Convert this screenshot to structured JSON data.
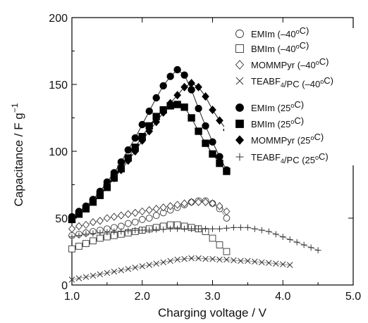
{
  "chart_data": {
    "type": "scatter",
    "title": "",
    "xlabel": "Charging voltage  / V",
    "ylabel": "Capacitance / F g",
    "ylabel_superscript": "−1",
    "xlim": [
      1.0,
      5.0
    ],
    "ylim": [
      0,
      200
    ],
    "xticks": [
      "1.0",
      "2.0",
      "3.0",
      "4.0",
      "5.0"
    ],
    "yticks": [
      "0",
      "50",
      "100",
      "150",
      "200"
    ],
    "grid": false,
    "legend_position": "top-right",
    "series": [
      {
        "name": "EMIm (–40°C)",
        "legend_parts": [
          [
            "EMIm (–40",
            false
          ],
          [
            "o",
            true
          ],
          [
            "C)",
            false
          ]
        ],
        "marker": "circle-open",
        "connect": true,
        "x": [
          1.0,
          1.1,
          1.2,
          1.3,
          1.4,
          1.5,
          1.6,
          1.7,
          1.8,
          1.9,
          2.0,
          2.1,
          2.2,
          2.3,
          2.4,
          2.5,
          2.6,
          2.7,
          2.8,
          2.9,
          3.0,
          3.1,
          3.2
        ],
        "y": [
          37,
          38,
          39,
          40,
          41,
          42,
          43,
          44,
          46,
          47,
          49,
          50,
          52,
          54,
          56,
          58,
          60,
          62,
          63,
          63,
          61,
          57,
          50
        ]
      },
      {
        "name": "BMIm (–40°C)",
        "legend_parts": [
          [
            "BMIm (–40",
            false
          ],
          [
            "o",
            true
          ],
          [
            "C)",
            false
          ]
        ],
        "marker": "square-open",
        "connect": true,
        "x": [
          1.0,
          1.1,
          1.2,
          1.3,
          1.4,
          1.5,
          1.6,
          1.7,
          1.8,
          1.9,
          2.0,
          2.1,
          2.2,
          2.3,
          2.4,
          2.5,
          2.6,
          2.7,
          2.8,
          2.9,
          3.0,
          3.1,
          3.2
        ],
        "y": [
          27,
          29,
          31,
          33,
          35,
          36,
          37,
          38,
          39,
          40,
          41,
          42,
          43,
          44,
          45,
          45,
          44,
          43,
          42,
          40,
          35,
          30,
          25
        ]
      },
      {
        "name": "MOMMPyr (–40°C)",
        "legend_parts": [
          [
            "MOMMPyr (–40",
            false
          ],
          [
            "o",
            true
          ],
          [
            "C)",
            false
          ]
        ],
        "marker": "diamond-open",
        "connect": true,
        "x": [
          1.0,
          1.1,
          1.2,
          1.3,
          1.4,
          1.5,
          1.6,
          1.7,
          1.8,
          1.9,
          2.0,
          2.1,
          2.2,
          2.3,
          2.4,
          2.5,
          2.6,
          2.7,
          2.8,
          2.9,
          3.0,
          3.1,
          3.2
        ],
        "y": [
          42,
          44,
          45,
          47,
          48,
          50,
          51,
          52,
          53,
          54,
          55,
          56,
          57,
          58,
          59,
          60,
          61,
          62,
          62,
          62,
          61,
          59,
          55
        ]
      },
      {
        "name": "TEABF4/PC (–40°C)",
        "legend_parts": [
          [
            "TEABF",
            false
          ],
          [
            "4",
            "sub"
          ],
          [
            "/PC (–40",
            false
          ],
          [
            "o",
            true
          ],
          [
            "C)",
            false
          ]
        ],
        "marker": "x",
        "connect": true,
        "x": [
          1.0,
          1.1,
          1.2,
          1.3,
          1.4,
          1.5,
          1.6,
          1.7,
          1.8,
          1.9,
          2.0,
          2.1,
          2.2,
          2.3,
          2.4,
          2.5,
          2.6,
          2.7,
          2.8,
          2.9,
          3.0,
          3.1,
          3.2,
          3.3,
          3.4,
          3.5,
          3.6,
          3.7,
          3.8,
          3.9,
          4.0,
          4.1
        ],
        "y": [
          4,
          5,
          6,
          7,
          8,
          9,
          10,
          11,
          12,
          13,
          14,
          15,
          16,
          17,
          18,
          19,
          19.5,
          20,
          20,
          19.5,
          19.5,
          19,
          19,
          18.5,
          18,
          18,
          17.5,
          17,
          16.5,
          16,
          15.5,
          15
        ]
      },
      {
        "name": "EMIm (25°C)",
        "legend_parts": [
          [
            "EMIm (25",
            false
          ],
          [
            "o",
            true
          ],
          [
            "C)",
            false
          ]
        ],
        "marker": "circle-filled",
        "connect": true,
        "x": [
          1.0,
          1.1,
          1.2,
          1.3,
          1.4,
          1.5,
          1.6,
          1.7,
          1.8,
          1.9,
          2.0,
          2.1,
          2.2,
          2.3,
          2.4,
          2.5,
          2.6,
          2.7,
          2.8,
          2.9,
          3.0,
          3.1,
          3.2
        ],
        "y": [
          51,
          55,
          59,
          64,
          70,
          77,
          84,
          92,
          101,
          110,
          120,
          130,
          140,
          149,
          156,
          161,
          157,
          146,
          132,
          119,
          107,
          96,
          86
        ]
      },
      {
        "name": "BMIm (25°C)",
        "legend_parts": [
          [
            "BMIm (25",
            false
          ],
          [
            "o",
            true
          ],
          [
            "C)",
            false
          ]
        ],
        "marker": "square-filled",
        "connect": true,
        "x": [
          1.0,
          1.1,
          1.2,
          1.3,
          1.4,
          1.5,
          1.6,
          1.7,
          1.8,
          1.9,
          2.0,
          2.1,
          2.2,
          2.3,
          2.4,
          2.5,
          2.6,
          2.7,
          2.8,
          2.9,
          3.0,
          3.1,
          3.2
        ],
        "y": [
          49,
          53,
          57,
          62,
          67,
          73,
          80,
          87,
          95,
          103,
          111,
          119,
          126,
          131,
          134,
          135,
          133,
          125,
          115,
          106,
          98,
          91,
          85
        ]
      },
      {
        "name": "MOMMPyr (25°C)",
        "legend_parts": [
          [
            "MOMMPyr (25",
            false
          ],
          [
            "o",
            true
          ],
          [
            "C)",
            false
          ]
        ],
        "marker": "diamond-filled",
        "connect": true,
        "x": [
          1.0,
          1.1,
          1.2,
          1.3,
          1.4,
          1.5,
          1.6,
          1.7,
          1.8,
          1.9,
          2.0,
          2.1,
          2.2,
          2.3,
          2.4,
          2.5,
          2.6,
          2.7,
          2.8,
          2.9,
          3.0,
          3.1,
          3.2
        ],
        "y": [
          50,
          54,
          58,
          63,
          68,
          74,
          80,
          86,
          93,
          100,
          108,
          115,
          122,
          129,
          136,
          142,
          148,
          151,
          148,
          141,
          131,
          123,
          116
        ]
      },
      {
        "name": "TEABF4/PC (25°C)",
        "legend_parts": [
          [
            "TEABF",
            false
          ],
          [
            "4",
            "sub"
          ],
          [
            "/PC (25",
            false
          ],
          [
            "o",
            true
          ],
          [
            "C)",
            false
          ]
        ],
        "marker": "plus",
        "connect": true,
        "x": [
          1.0,
          1.1,
          1.2,
          1.3,
          1.4,
          1.5,
          1.6,
          1.7,
          1.8,
          1.9,
          2.0,
          2.1,
          2.2,
          2.3,
          2.4,
          2.5,
          2.6,
          2.7,
          2.8,
          2.9,
          3.0,
          3.1,
          3.2,
          3.3,
          3.4,
          3.5,
          3.6,
          3.7,
          3.8,
          3.9,
          4.0,
          4.1,
          4.2,
          4.3,
          4.4,
          4.5
        ],
        "y": [
          36,
          37,
          38,
          38.5,
          39,
          39.5,
          40,
          40,
          40.5,
          41,
          41,
          41,
          41.5,
          41.5,
          42,
          42,
          42,
          42,
          42,
          42,
          42,
          42,
          42.5,
          43,
          43,
          43,
          42,
          41,
          40,
          38,
          36,
          34,
          32,
          30,
          28,
          26
        ]
      }
    ]
  }
}
